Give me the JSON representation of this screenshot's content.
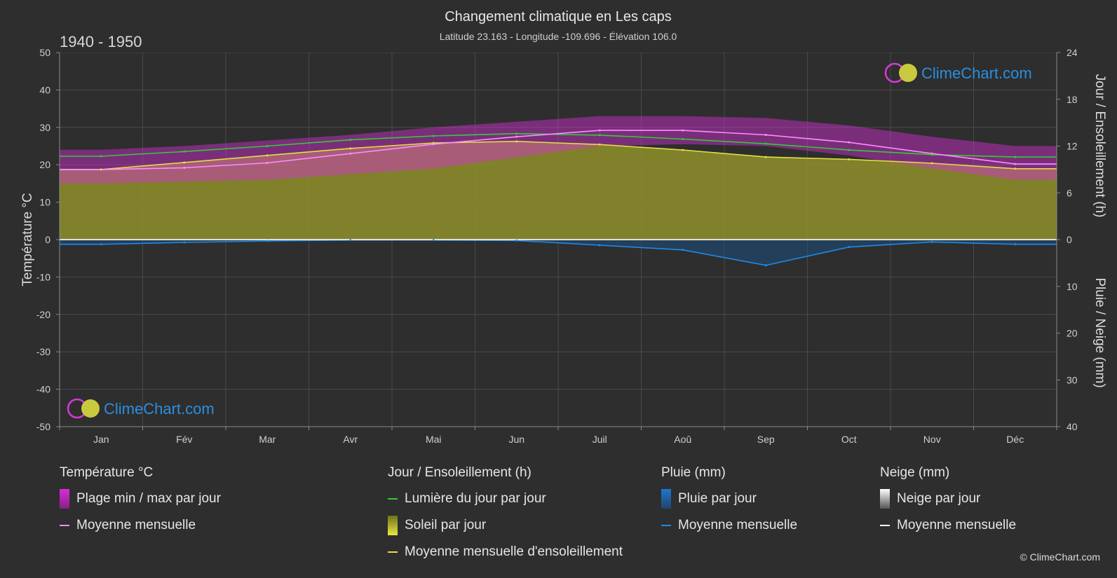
{
  "header": {
    "title": "Changement climatique en Les caps",
    "subtitle": "Latitude 23.163 - Longitude -109.696 - Élévation 106.0",
    "period": "1940 - 1950"
  },
  "watermark": "ClimeChart.com",
  "copyright": "© ClimeChart.com",
  "colors": {
    "background": "#2e2e2e",
    "temp_range": "#d62ed6",
    "temp_mean": "#ff8cff",
    "daylight": "#33cc33",
    "sunshine": "#8f8f2a",
    "sunshine_mean": "#e0e040",
    "rain": "#1e78d2",
    "snow": "#ffffff"
  },
  "legend": {
    "temperature": {
      "title": "Température °C",
      "range_label": "Plage min / max par jour",
      "mean_label": "Moyenne mensuelle"
    },
    "sun": {
      "title": "Jour / Ensoleillement (h)",
      "daylight_label": "Lumière du jour par jour",
      "sunshine_label": "Soleil par jour",
      "sunshine_mean_label": "Moyenne mensuelle d'ensoleillement"
    },
    "rain": {
      "title": "Pluie (mm)",
      "rain_label": "Pluie par jour",
      "mean_label": "Moyenne mensuelle"
    },
    "snow": {
      "title": "Neige (mm)",
      "snow_label": "Neige par jour",
      "mean_label": "Moyenne mensuelle"
    }
  },
  "chart_data": {
    "type": "area",
    "categories": [
      "Jan",
      "Fév",
      "Mar",
      "Avr",
      "Mai",
      "Jun",
      "Juil",
      "Aoû",
      "Sep",
      "Oct",
      "Nov",
      "Déc"
    ],
    "y_left": {
      "label": "Température °C",
      "range": [
        -50,
        50
      ],
      "ticks": [
        50,
        40,
        30,
        20,
        10,
        0,
        -10,
        -20,
        -30,
        -40,
        -50
      ]
    },
    "y_right_top": {
      "label": "Jour / Ensoleillement (h)",
      "range": [
        0,
        24
      ],
      "ticks": [
        24,
        18,
        12,
        6,
        0
      ]
    },
    "y_right_bottom": {
      "label": "Pluie / Neige (mm)",
      "range": [
        0,
        40
      ],
      "ticks": [
        0,
        10,
        20,
        30,
        40
      ]
    },
    "series": [
      {
        "name": "Plage min / max par jour",
        "unit": "°C",
        "min": [
          15,
          15.5,
          16,
          17.5,
          19,
          22,
          25,
          25.5,
          25,
          22.5,
          19,
          16
        ],
        "max": [
          24,
          25,
          26.5,
          28,
          30,
          31.5,
          33,
          33,
          32.5,
          30.5,
          27.5,
          25
        ]
      },
      {
        "name": "Moyenne mensuelle (température)",
        "unit": "°C",
        "values": [
          18.7,
          19.2,
          20.5,
          23,
          25.5,
          27.5,
          29.2,
          29.2,
          28,
          26,
          23,
          20.2
        ]
      },
      {
        "name": "Lumière du jour par jour",
        "unit": "h",
        "values": [
          10.7,
          11.3,
          12.0,
          12.8,
          13.3,
          13.6,
          13.4,
          12.9,
          12.3,
          11.5,
          10.9,
          10.6
        ]
      },
      {
        "name": "Soleil par jour",
        "unit": "h",
        "values": [
          9.0,
          9.9,
          10.8,
          11.7,
          12.4,
          12.6,
          12.2,
          11.5,
          10.6,
          10.3,
          9.8,
          9.1
        ]
      },
      {
        "name": "Moyenne mensuelle d'ensoleillement",
        "unit": "h",
        "values": [
          9.0,
          9.9,
          10.8,
          11.7,
          12.4,
          12.6,
          12.2,
          11.5,
          10.6,
          10.3,
          9.8,
          9.1
        ]
      },
      {
        "name": "Pluie par jour (moyenne mensuelle)",
        "unit": "mm",
        "values": [
          1.0,
          0.6,
          0.3,
          0.1,
          0.1,
          0.2,
          1.2,
          2.2,
          5.5,
          1.6,
          0.5,
          1.0
        ]
      },
      {
        "name": "Neige (moyenne mensuelle)",
        "unit": "mm",
        "values": [
          0,
          0,
          0,
          0,
          0,
          0,
          0,
          0,
          0,
          0,
          0,
          0
        ]
      }
    ],
    "grid": true
  }
}
